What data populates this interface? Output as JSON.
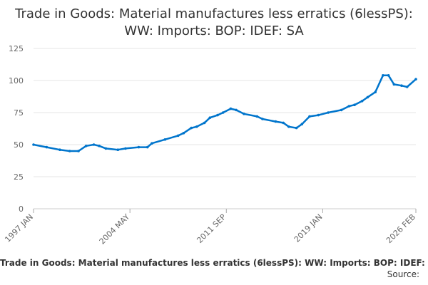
{
  "chart_data": {
    "type": "line",
    "title": "Trade in Goods: Material manufactures less erratics (6lessPS): WW: Imports: BOP: IDEF: SA",
    "xlabel": "",
    "ylabel": "",
    "ylim": [
      0,
      125
    ],
    "yticks": [
      0,
      25,
      50,
      75,
      100,
      125
    ],
    "xlim": [
      "1997-01",
      "2026-02"
    ],
    "xtick_labels": [
      {
        "label": "1997 JAN",
        "date": "1997-01"
      },
      {
        "label": "2004 MAY",
        "date": "2004-05"
      },
      {
        "label": "2011 SEP",
        "date": "2011-09"
      },
      {
        "label": "2019 JAN",
        "date": "2019-01"
      },
      {
        "label": "2026 FEB",
        "date": "2026-02"
      }
    ],
    "grid": "horizontal",
    "color": "#0075cc",
    "series": [
      {
        "name": "Trade in Goods: Material manufactures less erratics (6lessPS): WW: Imports: BOP: IDEF: SA",
        "points": [
          [
            "1997-01",
            50
          ],
          [
            "1998-01",
            48
          ],
          [
            "1999-01",
            46
          ],
          [
            "1999-10",
            45
          ],
          [
            "2000-06",
            45
          ],
          [
            "2001-01",
            49
          ],
          [
            "2001-08",
            50
          ],
          [
            "2002-01",
            49
          ],
          [
            "2002-07",
            47
          ],
          [
            "2003-06",
            46
          ],
          [
            "2004-01",
            47
          ],
          [
            "2005-01",
            48
          ],
          [
            "2005-09",
            48
          ],
          [
            "2006-01",
            51
          ],
          [
            "2007-01",
            54
          ],
          [
            "2008-01",
            57
          ],
          [
            "2008-06",
            59
          ],
          [
            "2009-01",
            63
          ],
          [
            "2009-06",
            64
          ],
          [
            "2010-01",
            67
          ],
          [
            "2010-06",
            71
          ],
          [
            "2011-01",
            73
          ],
          [
            "2011-06",
            75
          ],
          [
            "2012-01",
            78
          ],
          [
            "2012-06",
            77
          ],
          [
            "2013-01",
            74
          ],
          [
            "2014-01",
            72
          ],
          [
            "2014-06",
            70
          ],
          [
            "2015-06",
            68
          ],
          [
            "2016-01",
            67
          ],
          [
            "2016-06",
            64
          ],
          [
            "2017-01",
            63
          ],
          [
            "2017-06",
            66
          ],
          [
            "2018-01",
            72
          ],
          [
            "2018-09",
            73
          ],
          [
            "2019-06",
            75
          ],
          [
            "2020-06",
            77
          ],
          [
            "2021-01",
            80
          ],
          [
            "2021-06",
            81
          ],
          [
            "2022-01",
            84
          ],
          [
            "2022-06",
            87
          ],
          [
            "2023-01",
            91
          ],
          [
            "2023-08",
            104
          ],
          [
            "2024-01",
            104
          ],
          [
            "2024-06",
            97
          ],
          [
            "2025-01",
            96
          ],
          [
            "2025-06",
            95
          ],
          [
            "2026-02",
            101
          ]
        ]
      }
    ],
    "source_text": "Source:"
  }
}
